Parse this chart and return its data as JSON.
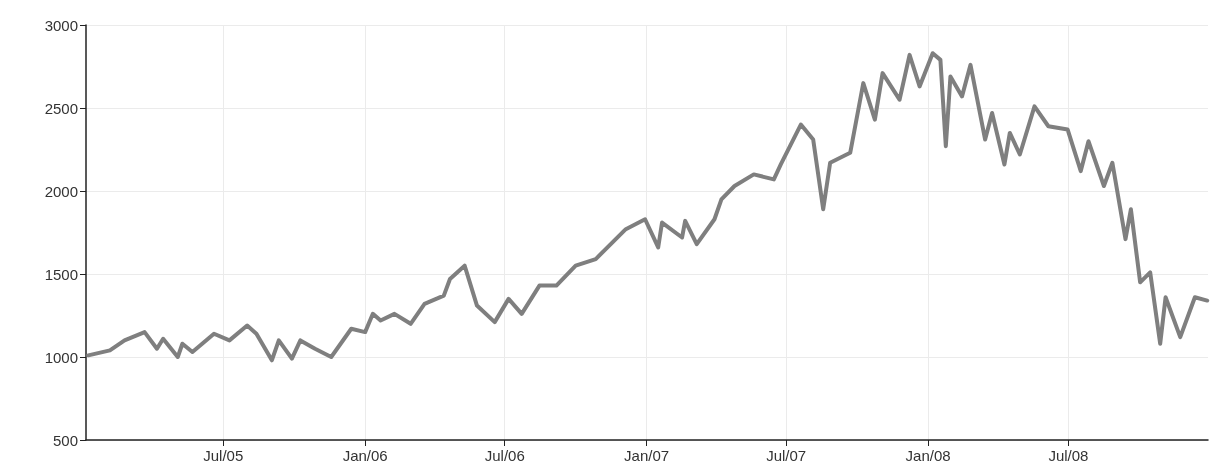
{
  "chart_data": {
    "type": "line",
    "x": [
      "2005-01-07",
      "2005-02-04",
      "2005-02-23",
      "2005-03-21",
      "2005-04-06",
      "2005-04-14",
      "2005-05-03",
      "2005-05-09",
      "2005-05-22",
      "2005-06-19",
      "2005-07-09",
      "2005-08-01",
      "2005-08-13",
      "2005-09-02",
      "2005-09-11",
      "2005-09-28",
      "2005-10-09",
      "2005-10-28",
      "2005-11-18",
      "2005-12-14",
      "2006-01-01",
      "2006-01-11",
      "2006-01-21",
      "2006-02-08",
      "2006-03-01",
      "2006-03-19",
      "2006-04-13",
      "2006-04-21",
      "2006-05-10",
      "2006-05-26",
      "2006-06-18",
      "2006-07-06",
      "2006-07-23",
      "2006-08-15",
      "2006-09-06",
      "2006-10-01",
      "2006-10-27",
      "2006-12-05",
      "2006-12-30",
      "2007-01-16",
      "2007-01-21",
      "2007-02-16",
      "2007-02-20",
      "2007-03-07",
      "2007-03-30",
      "2007-04-08",
      "2007-04-25",
      "2007-05-20",
      "2007-06-15",
      "2007-06-24",
      "2007-07-20",
      "2007-08-05",
      "2007-08-18",
      "2007-08-27",
      "2007-09-22",
      "2007-10-09",
      "2007-10-24",
      "2007-11-03",
      "2007-11-25",
      "2007-12-08",
      "2007-12-21",
      "2008-01-07",
      "2008-01-17",
      "2008-01-24",
      "2008-01-30",
      "2008-02-14",
      "2008-02-25",
      "2008-03-15",
      "2008-03-24",
      "2008-04-09",
      "2008-04-16",
      "2008-04-29",
      "2008-05-18",
      "2008-06-05",
      "2008-06-30",
      "2008-07-17",
      "2008-07-27",
      "2008-08-16",
      "2008-08-27",
      "2008-09-13",
      "2008-09-20",
      "2008-10-02",
      "2008-10-15",
      "2008-10-28",
      "2008-11-04",
      "2008-11-23",
      "2008-12-12",
      "2008-12-28"
    ],
    "series": [
      {
        "color": "#7f7f7f",
        "values": [
          1010,
          1040,
          1100,
          1150,
          1050,
          1110,
          1000,
          1080,
          1030,
          1140,
          1100,
          1190,
          1140,
          980,
          1100,
          990,
          1100,
          1050,
          1000,
          1170,
          1150,
          1260,
          1220,
          1260,
          1200,
          1320,
          1370,
          1470,
          1550,
          1310,
          1210,
          1350,
          1260,
          1430,
          1430,
          1550,
          1590,
          1770,
          1830,
          1660,
          1810,
          1720,
          1820,
          1680,
          1830,
          1950,
          2030,
          2100,
          2070,
          2160,
          2400,
          2310,
          1890,
          2170,
          2230,
          2650,
          2430,
          2710,
          2550,
          2820,
          2630,
          2830,
          2790,
          2270,
          2690,
          2570,
          2760,
          2310,
          2470,
          2160,
          2350,
          2220,
          2510,
          2390,
          2370,
          2120,
          2300,
          2030,
          2170,
          1710,
          1890,
          1450,
          1510,
          1080,
          1360,
          1120,
          1360,
          1340
        ]
      }
    ],
    "xlim": [
      "2005-01-04",
      "2008-12-29"
    ],
    "xticks": [
      {
        "value": "2005-07-01",
        "label": "Jul/05"
      },
      {
        "value": "2006-01-01",
        "label": "Jan/06"
      },
      {
        "value": "2006-07-01",
        "label": "Jul/06"
      },
      {
        "value": "2007-01-01",
        "label": "Jan/07"
      },
      {
        "value": "2007-07-01",
        "label": "Jul/07"
      },
      {
        "value": "2008-01-01",
        "label": "Jan/08"
      },
      {
        "value": "2008-07-01",
        "label": "Jul/08"
      }
    ],
    "ylim": [
      500,
      3000
    ],
    "yticks": [
      500,
      1000,
      1500,
      2000,
      2500,
      3000
    ],
    "grid": true,
    "marker": "none",
    "line_style": "solid"
  }
}
